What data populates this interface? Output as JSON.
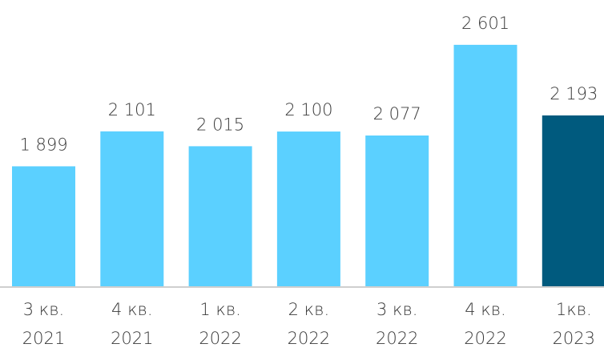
{
  "chart_data": {
    "type": "bar",
    "categories": [
      [
        "3 кв.",
        "2021"
      ],
      [
        "4 кв.",
        "2021"
      ],
      [
        "1 кв.",
        "2022"
      ],
      [
        "2 кв.",
        "2022"
      ],
      [
        "3 кв.",
        "2022"
      ],
      [
        "4 кв.",
        "2022"
      ],
      [
        "1кв.",
        "2023"
      ]
    ],
    "values": [
      1899,
      2101,
      2015,
      2100,
      2077,
      2601,
      2193
    ],
    "value_labels": [
      "1 899",
      "2 101",
      "2 015",
      "2 100",
      "2 077",
      "2 601",
      "2 193"
    ],
    "colors": [
      "#5bd0ff",
      "#5bd0ff",
      "#5bd0ff",
      "#5bd0ff",
      "#5bd0ff",
      "#5bd0ff",
      "#005a7e"
    ],
    "ylim": [
      1206,
      2860
    ]
  }
}
